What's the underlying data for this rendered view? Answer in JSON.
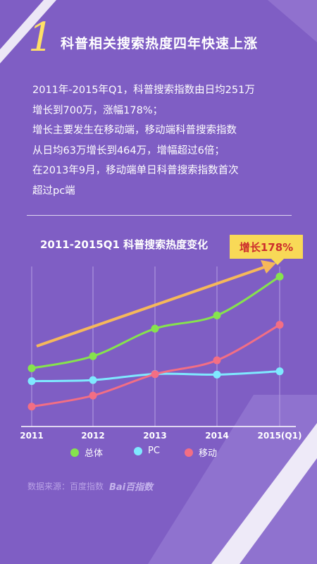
{
  "header": {
    "number": "1",
    "title": "科普相关搜索热度四年快速上涨"
  },
  "body_lines": [
    "2011年-2015年Q1，科普搜索指数由日均251万",
    "增长到700万，涨幅178%；",
    "增长主要发生在移动端，移动端科普搜索指数",
    "从日均63万增长到464万，增幅超过6倍；",
    "在2013年9月，移动端单日科普搜索指数首次",
    "超过pc端"
  ],
  "callout": "增长178%",
  "footer": {
    "source": "数据来源：百度指数",
    "logo": "Bai百指数"
  },
  "colors": {
    "background": "#7f5ec4",
    "overall": "#86e34d",
    "pc": "#7fe9ff",
    "mobile": "#f36e84",
    "accent": "#ffe066",
    "arrow": "#f6b85a"
  },
  "chart_data": {
    "type": "line",
    "title": "2011-2015Q1 科普搜索热度变化",
    "x": [
      "2011",
      "2012",
      "2013",
      "2014",
      "2015(Q1)"
    ],
    "ylabel": "",
    "grid": "vertical",
    "legend": "bottom",
    "series": [
      {
        "name": "总体",
        "color": "#86e34d",
        "values": [
          251,
          310,
          445,
          510,
          700
        ]
      },
      {
        "name": "PC",
        "color": "#7fe9ff",
        "values": [
          188,
          193,
          223,
          220,
          236
        ]
      },
      {
        "name": "移动",
        "color": "#f36e84",
        "values": [
          63,
          117,
          222,
          290,
          464
        ]
      }
    ],
    "annotation": "增长178%"
  }
}
